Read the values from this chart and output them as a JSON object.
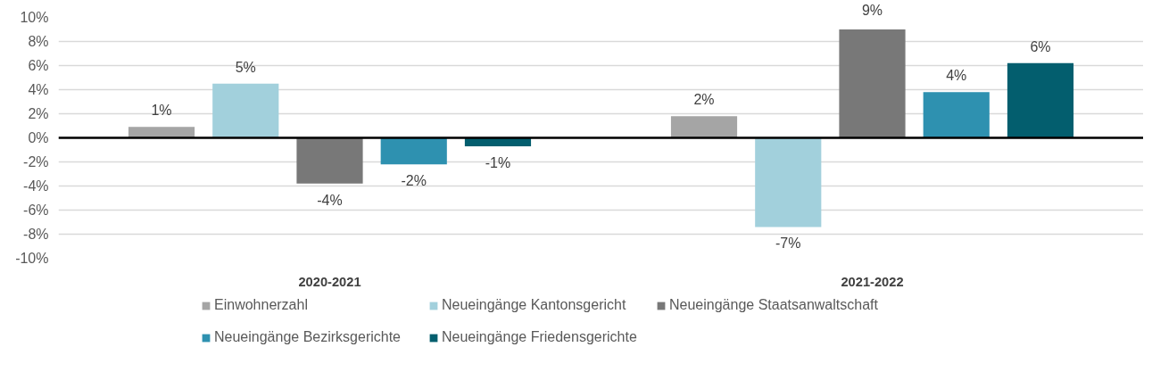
{
  "chart_data": {
    "type": "bar",
    "categories": [
      "2020-2021",
      "2021-2022"
    ],
    "series": [
      {
        "name": "Einwohnerzahl",
        "color": "#a5a5a5",
        "values": [
          0.9,
          1.8
        ],
        "value_labels": [
          "1%",
          "2%"
        ]
      },
      {
        "name": "Neueingänge Kantonsgericht",
        "color": "#a2d0dc",
        "values": [
          4.5,
          -7.4
        ],
        "value_labels": [
          "5%",
          "-7%"
        ]
      },
      {
        "name": "Neueingänge Staatsanwaltschaft",
        "color": "#787878",
        "values": [
          -3.8,
          9.0
        ],
        "value_labels": [
          "-4%",
          "9%"
        ]
      },
      {
        "name": "Neueingänge Bezirksgerichte",
        "color": "#2e91b0",
        "values": [
          -2.2,
          3.8
        ],
        "value_labels": [
          "-2%",
          "4%"
        ]
      },
      {
        "name": "Neueingänge Friedensgerichte",
        "color": "#035e6e",
        "values": [
          -0.7,
          6.2
        ],
        "value_labels": [
          "-1%",
          "6%"
        ]
      }
    ],
    "ylim": [
      -10,
      10
    ],
    "yticks": [
      {
        "value": -10,
        "label": "-10%"
      },
      {
        "value": -8,
        "label": "-8%"
      },
      {
        "value": -6,
        "label": "-6%"
      },
      {
        "value": -4,
        "label": "-4%"
      },
      {
        "value": -2,
        "label": "-2%"
      },
      {
        "value": 0,
        "label": "0%"
      },
      {
        "value": 2,
        "label": "2%"
      },
      {
        "value": 4,
        "label": "4%"
      },
      {
        "value": 6,
        "label": "6%"
      },
      {
        "value": 8,
        "label": "8%"
      },
      {
        "value": 10,
        "label": "10%"
      }
    ],
    "grid": "y",
    "legend": "bottom"
  }
}
